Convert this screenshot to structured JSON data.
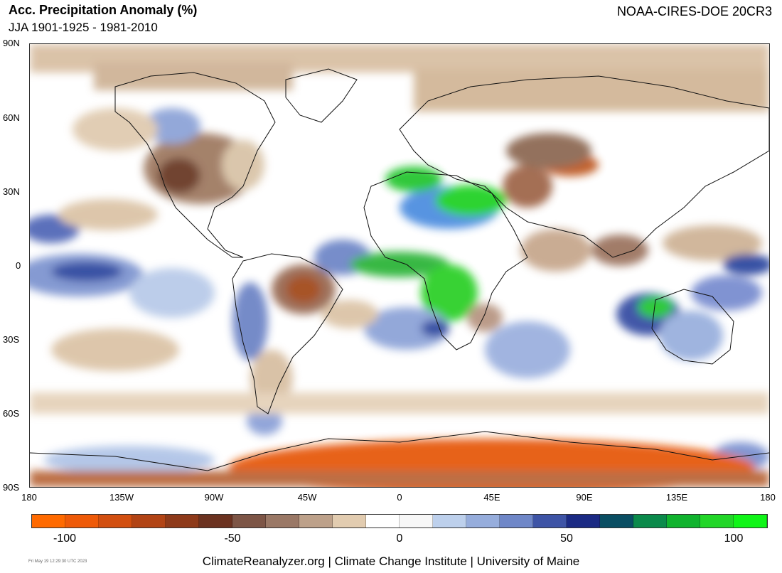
{
  "header": {
    "title": "Acc. Precipitation Anomaly (%)",
    "subtitle": "JJA 1901-1925 - 1981-2010",
    "source": "NOAA-CIRES-DOE 20CR3"
  },
  "map": {
    "lat_labels": [
      "90N",
      "60N",
      "30N",
      "0",
      "30S",
      "60S",
      "90S"
    ],
    "lon_labels": [
      "180",
      "135W",
      "90W",
      "45W",
      "0",
      "45E",
      "90E",
      "135E",
      "180"
    ]
  },
  "colorbar": {
    "colors": [
      "#ff6a00",
      "#ee5a08",
      "#d24f10",
      "#b24415",
      "#8e3a1a",
      "#6b3220",
      "#7d5546",
      "#9a7866",
      "#bda18a",
      "#e2ccb0",
      "#ffffff",
      "#f7f7f7",
      "#bdd0ec",
      "#96addc",
      "#6f87c8",
      "#3e54a6",
      "#1b2a84",
      "#0a4e63",
      "#0b8a4b",
      "#10b32e",
      "#22d628",
      "#10f518"
    ],
    "labels": [
      "-100",
      "-50",
      "0",
      "50",
      "100"
    ]
  },
  "footer": {
    "timestamp": "Fri May 19 12:29:30 UTC 2023",
    "credits": "ClimateReanalyzer.org | Climate Change Institute | University of Maine"
  }
}
